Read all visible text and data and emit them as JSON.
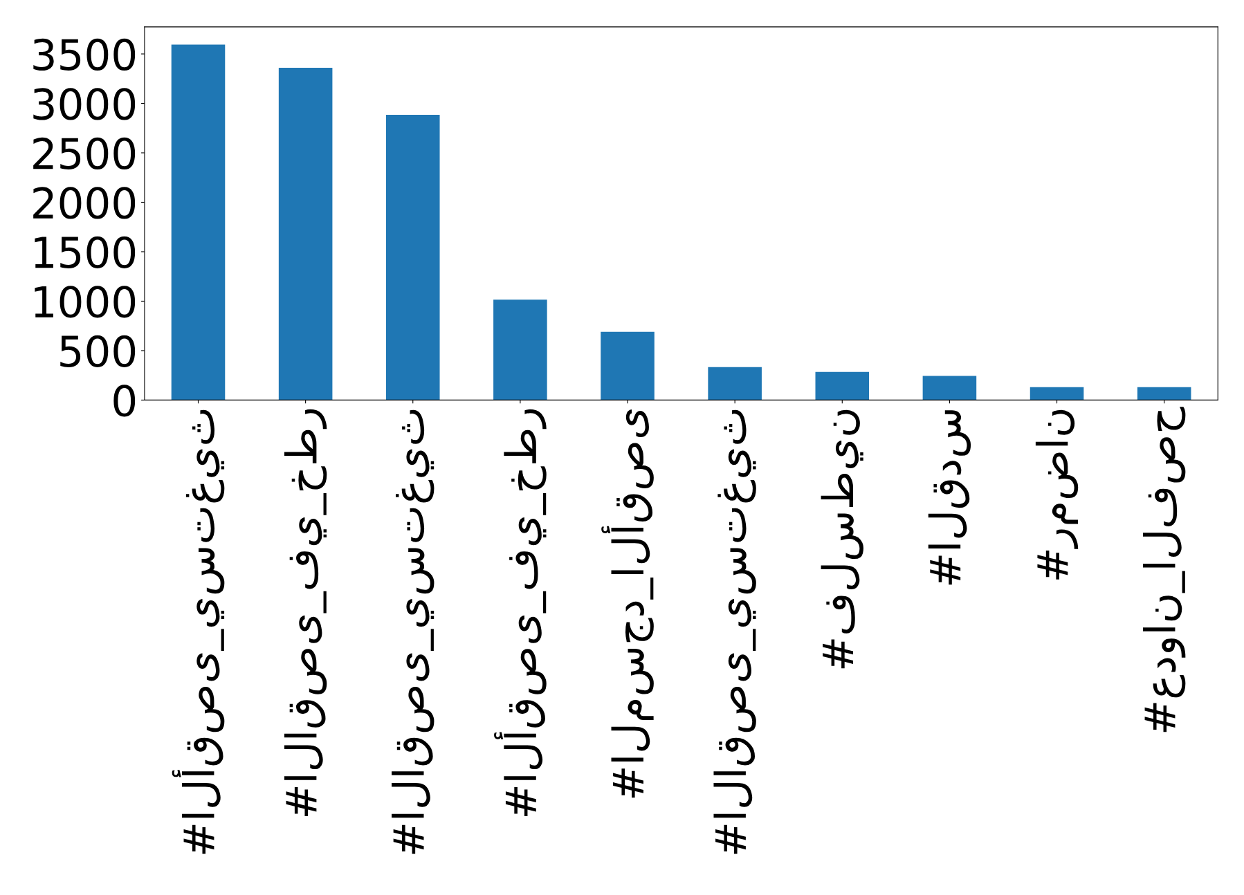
{
  "chart_data": {
    "type": "bar",
    "categories": [
      "#الأقصى_يستغيث",
      "#الاقصى_في_خطر",
      "#الاقصى_يستغيث",
      "#الأقصى_في_خطر",
      "#المسجد_الأقصى",
      "#الاقصى_يستغيث",
      "#فلسطين",
      "#القدس",
      "#رمضان",
      "#عدوان_الفصح"
    ],
    "values": [
      3594,
      3360,
      2885,
      1015,
      690,
      333,
      284,
      244,
      130,
      130
    ],
    "color": "#1f77b4",
    "ylim": [
      0,
      3774
    ],
    "yticks": [
      0,
      500,
      1000,
      1500,
      2000,
      2500,
      3000,
      3500
    ],
    "grid": false
  }
}
